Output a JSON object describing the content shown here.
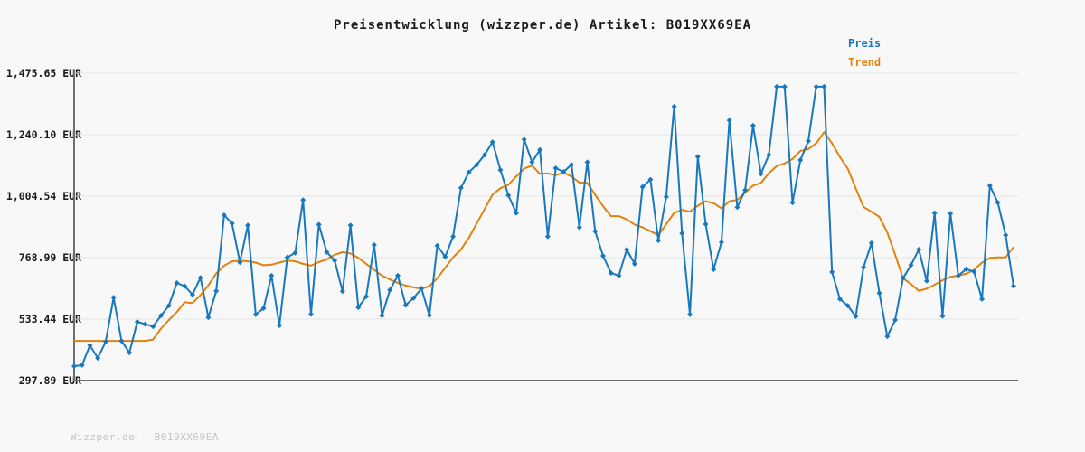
{
  "page": {
    "title": "Preisentwicklung (wizzper.de) Artikel: B019XX69EA",
    "footer": "Wizzper.de - B019XX69EA",
    "background_color": "#f8f8f8"
  },
  "legend": {
    "items": [
      {
        "label": "Preis",
        "color": "#1878be"
      },
      {
        "label": "Trend",
        "color": "#e2820e"
      }
    ]
  },
  "chart_data": {
    "type": "line",
    "title": "Preisentwicklung (wizzper.de) Artikel: B019XX69EA",
    "xlabel": "",
    "ylabel": "",
    "currency": "EUR",
    "grid": "horizontal",
    "legend_position": "top-right",
    "x_tick_labels": [],
    "y_ticks": [
      "1,475.65 EUR",
      "1,240.10 EUR",
      "1,004.54 EUR",
      "768.99 EUR",
      "533.44 EUR",
      "297.89 EUR"
    ],
    "y_tick_values": [
      1475.65,
      1240.1,
      1004.54,
      768.99,
      533.44,
      297.89
    ],
    "ylim": [
      297.89,
      1475.65
    ],
    "axis_color": "#6e6e6e",
    "gridline_color": "#e4e4e4",
    "series": [
      {
        "name": "Trend",
        "color": "#e2820e",
        "marker": "none",
        "values": [
          450,
          450,
          450,
          450,
          450,
          450,
          450,
          450,
          450,
          450,
          455,
          497,
          530,
          560,
          598,
          595,
          625,
          663,
          708,
          738,
          755,
          757,
          755,
          750,
          740,
          742,
          750,
          758,
          755,
          745,
          738,
          752,
          762,
          780,
          790,
          785,
          768,
          745,
          722,
          700,
          685,
          672,
          662,
          655,
          650,
          660,
          690,
          730,
          770,
          800,
          845,
          900,
          955,
          1010,
          1035,
          1048,
          1080,
          1110,
          1122,
          1090,
          1092,
          1085,
          1095,
          1080,
          1057,
          1055,
          1010,
          966,
          928,
          928,
          916,
          895,
          885,
          870,
          855,
          897,
          940,
          952,
          945,
          968,
          985,
          978,
          958,
          985,
          990,
          1018,
          1045,
          1055,
          1093,
          1120,
          1130,
          1147,
          1178,
          1185,
          1207,
          1250,
          1207,
          1155,
          1110,
          1035,
          963,
          945,
          925,
          866,
          780,
          690,
          668,
          642,
          650,
          665,
          682,
          695,
          700,
          707,
          722,
          750,
          768,
          770,
          770,
          810
        ]
      },
      {
        "name": "Preis",
        "color": "#1878be",
        "marker": "diamond",
        "values": [
          353,
          357,
          433,
          384,
          447,
          616,
          450,
          405,
          523,
          514,
          505,
          547,
          585,
          672,
          660,
          627,
          692,
          540,
          641,
          932,
          900,
          751,
          893,
          551,
          575,
          700,
          509,
          770,
          787,
          990,
          552,
          896,
          790,
          758,
          640,
          893,
          578,
          620,
          818,
          547,
          645,
          700,
          587,
          614,
          651,
          548,
          815,
          772,
          850,
          1036,
          1096,
          1125,
          1163,
          1212,
          1105,
          1008,
          940,
          1222,
          1135,
          1182,
          850,
          1112,
          1098,
          1125,
          885,
          1135,
          870,
          776,
          710,
          700,
          800,
          745,
          1040,
          1068,
          835,
          1002,
          1348,
          862,
          551,
          1156,
          897,
          724,
          828,
          1295,
          962,
          1028,
          1275,
          1090,
          1163,
          1424,
          1424,
          980,
          1143,
          1216,
          1424,
          1424,
          714,
          610,
          585,
          544,
          732,
          825,
          633,
          467,
          530,
          690,
          740,
          800,
          680,
          940,
          545,
          938,
          700,
          725,
          715,
          610,
          1045,
          980,
          855,
          660
        ]
      }
    ]
  }
}
